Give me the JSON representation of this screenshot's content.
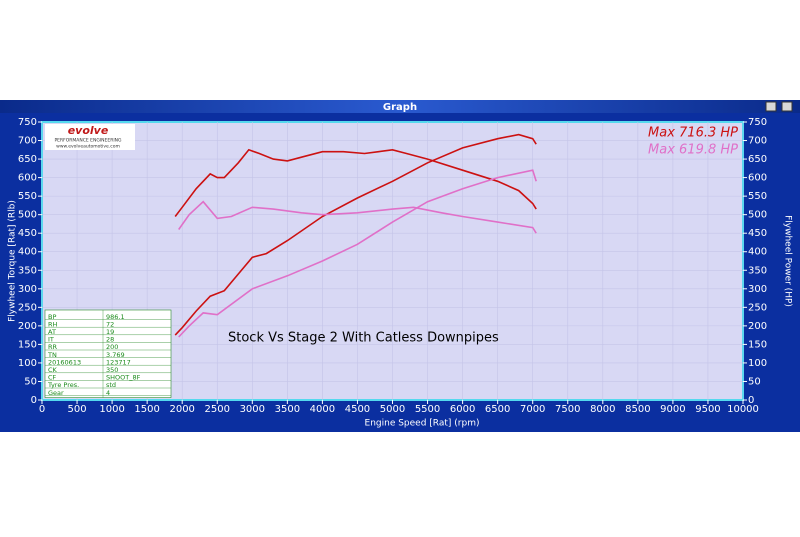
{
  "window": {
    "title": "Graph"
  },
  "logo": {
    "name": "evolve",
    "tagline": "PERFORMANCE ENGINEERING",
    "url": "www.evolveautomotive.com"
  },
  "info_table": [
    [
      "BP",
      "986.1"
    ],
    [
      "RH",
      "72"
    ],
    [
      "AT",
      "19"
    ],
    [
      "IT",
      "28"
    ],
    [
      "RR",
      "200"
    ],
    [
      "TN",
      "3.769"
    ],
    [
      "20160613",
      "123717"
    ],
    [
      "CK",
      "350"
    ],
    [
      "CF",
      "SHOOT_8F"
    ],
    [
      "Tyre Pres.",
      "std"
    ],
    [
      "Gear",
      "4"
    ]
  ],
  "chart_data": {
    "type": "line",
    "annotation": "Stock Vs Stage 2 With Catless Downpipes",
    "max_labels": [
      {
        "text": "Max 716.3 HP",
        "color": "#cc1111"
      },
      {
        "text": "Max 619.8 HP",
        "color": "#e070c8"
      }
    ],
    "xlabel": "Engine Speed [Rat] (rpm)",
    "ylabel": "Flywheel Torque [Rat] (Rlb)",
    "y2label": "Flywheel Power (HP)",
    "xlim": [
      0,
      10000
    ],
    "xticks": [
      0,
      500,
      1000,
      1500,
      2000,
      2500,
      3000,
      3500,
      4000,
      4500,
      5000,
      5500,
      6000,
      6500,
      7000,
      7500,
      8000,
      8500,
      9000,
      9500,
      10000
    ],
    "ylim": [
      0,
      750
    ],
    "yticks": [
      0,
      50,
      100,
      150,
      200,
      250,
      300,
      350,
      400,
      450,
      500,
      550,
      600,
      650,
      700,
      750
    ],
    "y2lim": [
      0,
      750
    ],
    "y2ticks": [
      0,
      50,
      100,
      150,
      200,
      250,
      300,
      350,
      400,
      450,
      500,
      550,
      600,
      650,
      700,
      750
    ],
    "grid": true,
    "series": [
      {
        "color": "#cc1111",
        "axis": "y",
        "x": [
          1900,
          2000,
          2200,
          2400,
          2500,
          2600,
          2800,
          2950,
          3100,
          3300,
          3500,
          3700,
          4000,
          4300,
          4600,
          4800,
          5000,
          5200,
          5500,
          6000,
          6500,
          6800,
          7000,
          7050
        ],
        "values": [
          495,
          520,
          570,
          610,
          600,
          600,
          640,
          675,
          665,
          650,
          645,
          655,
          670,
          670,
          665,
          670,
          675,
          665,
          650,
          620,
          590,
          565,
          530,
          515
        ]
      },
      {
        "color": "#cc1111",
        "axis": "y2",
        "x": [
          1900,
          2000,
          2200,
          2400,
          2600,
          2800,
          3000,
          3200,
          3500,
          4000,
          4500,
          5000,
          5500,
          6000,
          6500,
          6800,
          7000,
          7050
        ],
        "values": [
          175,
          195,
          240,
          280,
          295,
          340,
          385,
          395,
          430,
          495,
          545,
          590,
          640,
          680,
          705,
          716,
          705,
          690
        ]
      },
      {
        "color": "#e070c8",
        "axis": "y",
        "x": [
          1950,
          2100,
          2300,
          2500,
          2700,
          3000,
          3300,
          3700,
          4000,
          4500,
          5000,
          5300,
          5700,
          6000,
          6500,
          7000,
          7050
        ],
        "values": [
          460,
          500,
          535,
          490,
          495,
          520,
          515,
          505,
          500,
          505,
          515,
          520,
          505,
          495,
          480,
          465,
          450
        ]
      },
      {
        "color": "#e070c8",
        "axis": "y2",
        "x": [
          1950,
          2100,
          2300,
          2500,
          3000,
          3500,
          4000,
          4500,
          5000,
          5500,
          6000,
          6500,
          7000,
          7050
        ],
        "values": [
          170,
          200,
          235,
          230,
          300,
          335,
          375,
          420,
          480,
          535,
          570,
          600,
          620,
          590
        ]
      }
    ]
  }
}
